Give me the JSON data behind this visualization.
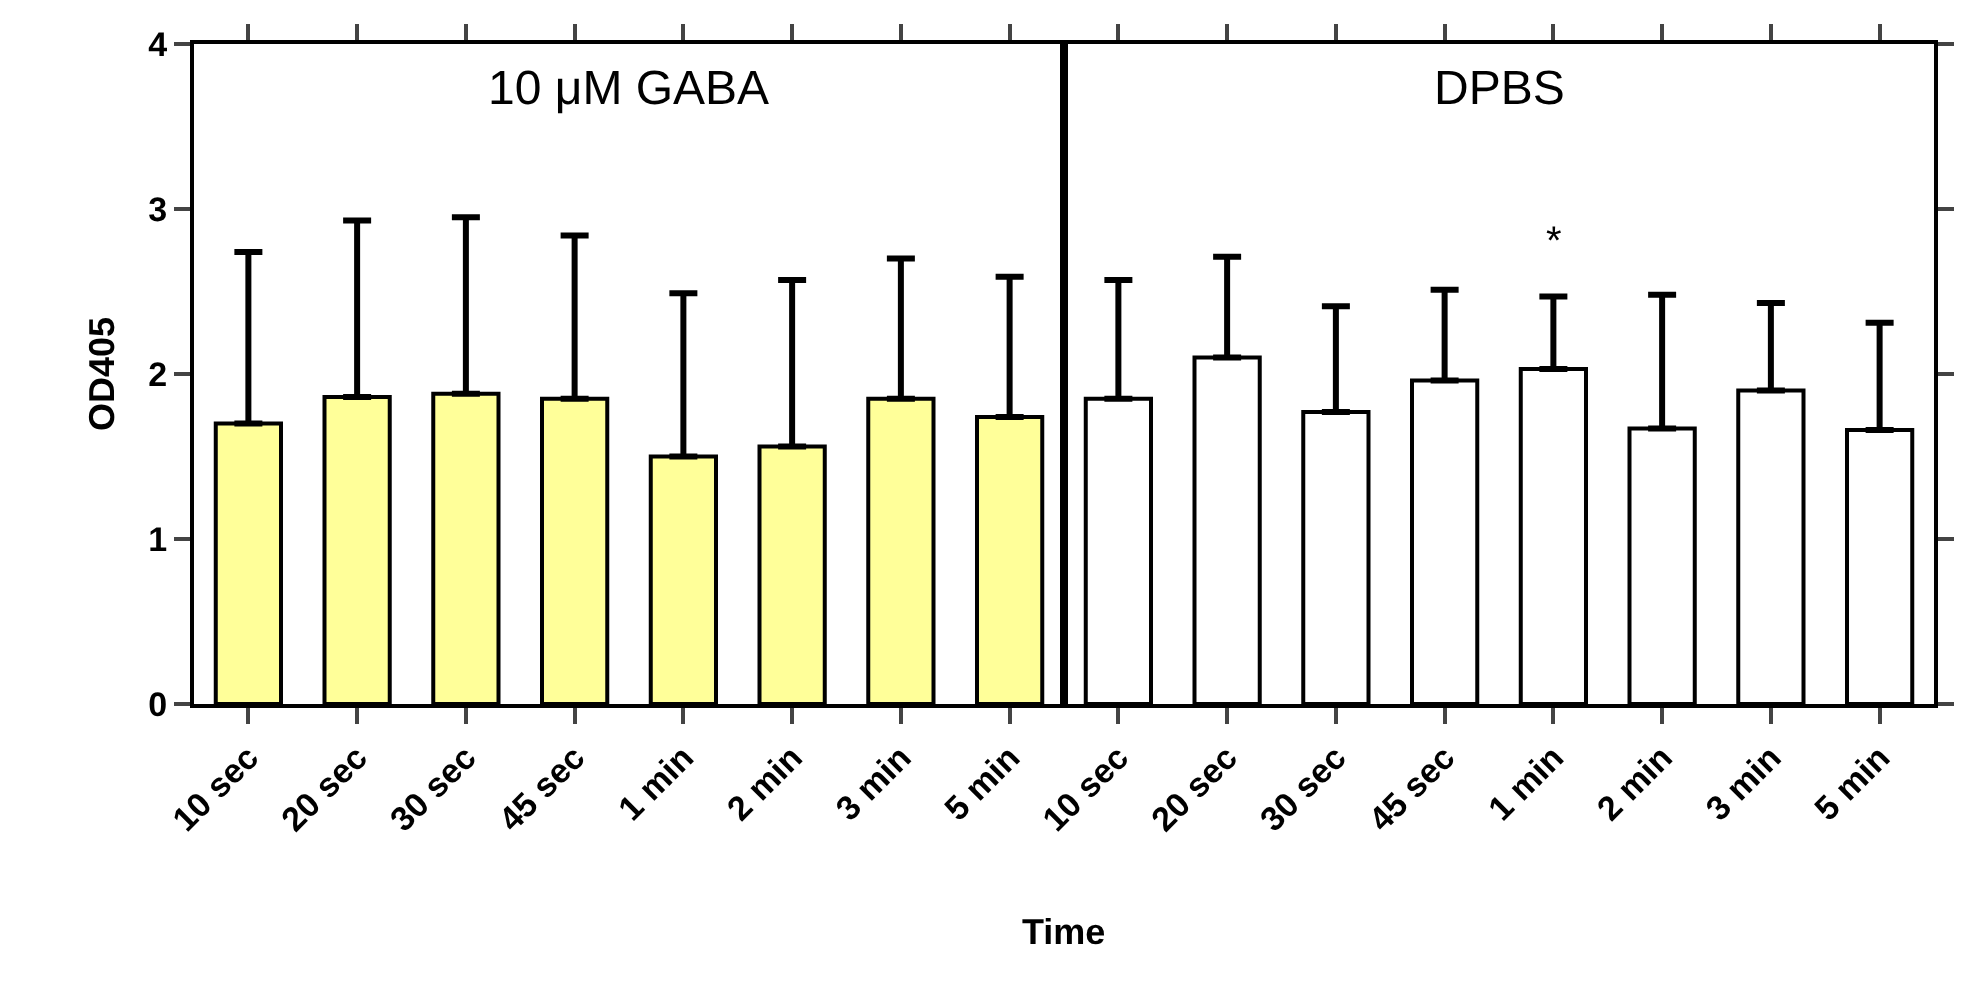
{
  "chart_data": [
    {
      "type": "bar",
      "title": "10 μM GABA",
      "xlabel": "Time",
      "ylabel": "OD405",
      "categories": [
        "10 sec",
        "20 sec",
        "30 sec",
        "45 sec",
        "1 min",
        "2 min",
        "3 min",
        "5 min"
      ],
      "values": [
        1.7,
        1.86,
        1.88,
        1.85,
        1.5,
        1.56,
        1.85,
        1.74
      ],
      "errors": [
        [
          1.7,
          2.74
        ],
        [
          1.86,
          2.93
        ],
        [
          1.88,
          2.95
        ],
        [
          1.85,
          2.84
        ],
        [
          1.5,
          2.49
        ],
        [
          1.56,
          2.57
        ],
        [
          1.85,
          2.7
        ],
        [
          1.74,
          2.59
        ]
      ],
      "color": "#ffff99",
      "ylim": [
        0,
        4
      ],
      "yticks": [
        0,
        1,
        2,
        3,
        4
      ],
      "grid": false
    },
    {
      "type": "bar",
      "title": "DPBS",
      "categories": [
        "10 sec",
        "20 sec",
        "30 sec",
        "45 sec",
        "1 min",
        "2 min",
        "3 min",
        "5 min"
      ],
      "values": [
        1.85,
        2.1,
        1.77,
        1.96,
        2.03,
        1.67,
        1.9,
        1.66
      ],
      "errors": [
        [
          1.85,
          2.57
        ],
        [
          2.1,
          2.71
        ],
        [
          1.77,
          2.41
        ],
        [
          1.96,
          2.51
        ],
        [
          2.03,
          2.47
        ],
        [
          1.67,
          2.48
        ],
        [
          1.9,
          2.43
        ],
        [
          1.66,
          2.31
        ]
      ],
      "color": "#ffffff",
      "ylim": [
        0,
        4
      ],
      "yticks": [
        0,
        1,
        2,
        3,
        4
      ],
      "grid": false,
      "tick_labels": "x",
      "annotations": [
        "*"
      ]
    }
  ]
}
